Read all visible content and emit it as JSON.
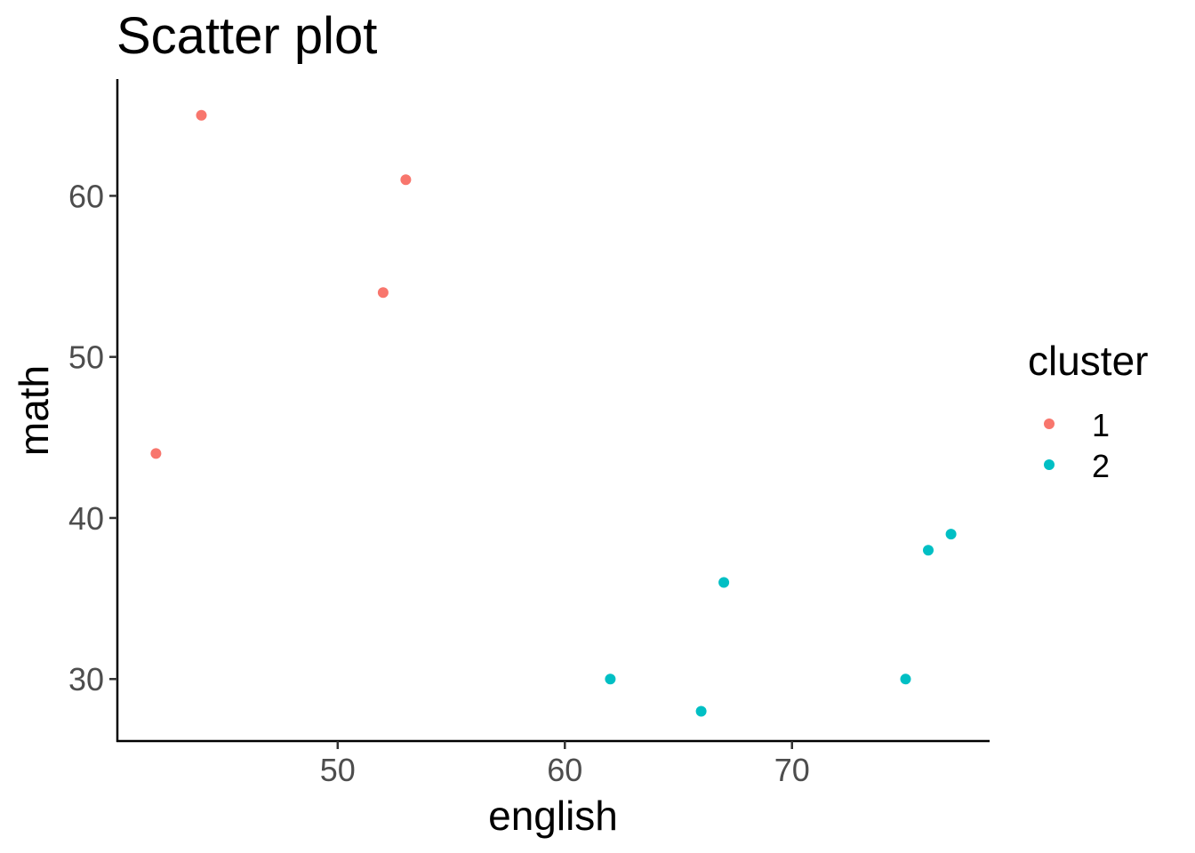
{
  "chart_data": {
    "type": "scatter",
    "title": "Scatter plot",
    "xlabel": "english",
    "ylabel": "math",
    "xlim": [
      40.3,
      78.7
    ],
    "ylim": [
      26.15,
      67.25
    ],
    "x_ticks": [
      50,
      60,
      70
    ],
    "y_ticks": [
      30,
      40,
      50,
      60
    ],
    "grid": false,
    "legend": {
      "title": "cluster",
      "position": "right"
    },
    "series": [
      {
        "name": "1",
        "color": "#F8766D",
        "points": [
          {
            "x": 42,
            "y": 44
          },
          {
            "x": 44,
            "y": 65
          },
          {
            "x": 52,
            "y": 54
          },
          {
            "x": 53,
            "y": 61
          }
        ]
      },
      {
        "name": "2",
        "color": "#00BFC4",
        "points": [
          {
            "x": 62,
            "y": 30
          },
          {
            "x": 66,
            "y": 28
          },
          {
            "x": 67,
            "y": 36
          },
          {
            "x": 75,
            "y": 30
          },
          {
            "x": 76,
            "y": 38
          },
          {
            "x": 77,
            "y": 39
          }
        ]
      }
    ]
  }
}
